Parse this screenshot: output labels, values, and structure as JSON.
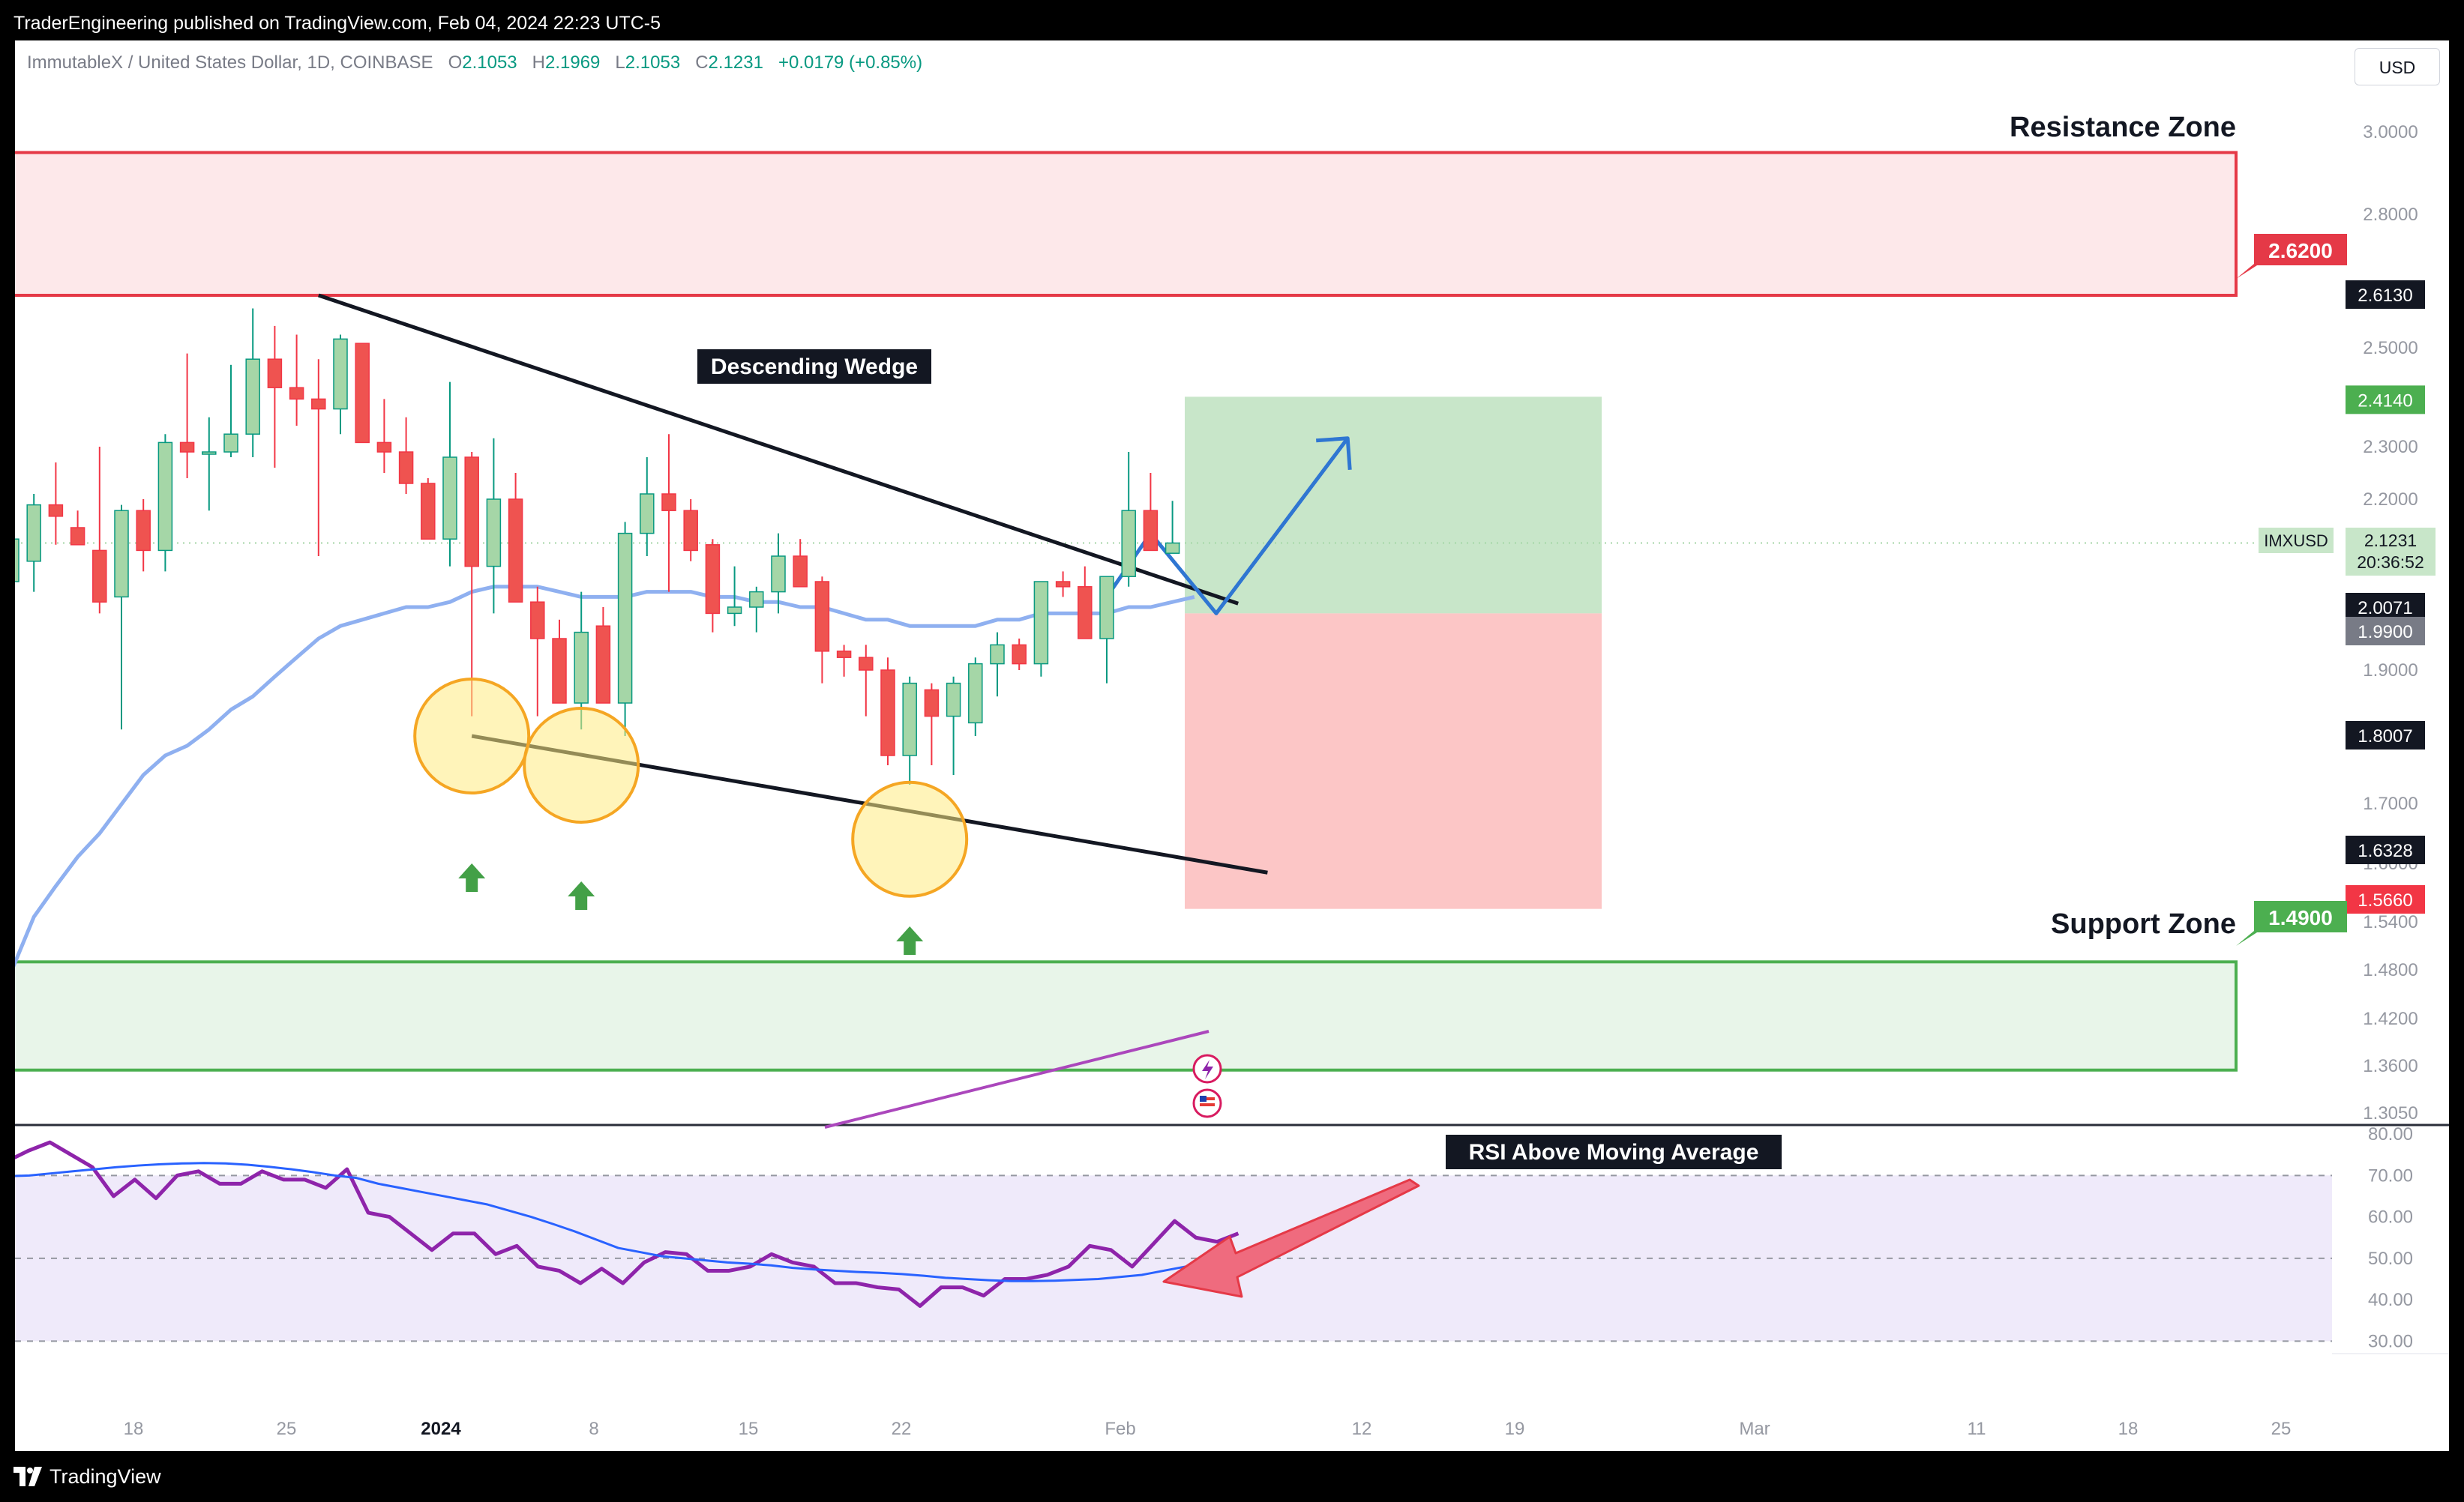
{
  "header": {
    "publish_line": "TraderEngineering published on TradingView.com, Feb 04, 2024 22:23 UTC-5"
  },
  "footer": {
    "brand": "TradingView"
  },
  "symbol_info": {
    "name": "ImmutableX / United States Dollar, 1D, COINBASE",
    "o_label": "O",
    "o": "2.1053",
    "h_label": "H",
    "h": "2.1969",
    "l_label": "L",
    "l": "2.1053",
    "c_label": "C",
    "c": "2.1231",
    "change": "+0.0179 (+0.85%)"
  },
  "currency": "USD",
  "colors": {
    "up": "#089981",
    "down": "#f23645",
    "up_fill": "#a5d6a7",
    "down_fill": "#ef5350",
    "resistance": "#e53947",
    "support": "#4caf50",
    "sma": "#8fb0f0",
    "rsi": "#8e24aa",
    "rsi_ma": "#2962ff"
  },
  "annotations": {
    "resistance_zone": "Resistance Zone",
    "support_zone": "Support Zone",
    "descending_wedge": "Descending Wedge",
    "rsi_note": "RSI Above Moving Average"
  },
  "price_labels": {
    "resistance": "2.6200",
    "support": "1.4900",
    "p2613": "2.6130",
    "tp": "2.4140",
    "symbol": "IMXUSD",
    "last": "2.1231",
    "countdown": "20:36:52",
    "p2007": "2.0071",
    "entry": "1.9900",
    "p1800": "1.8007",
    "p1632": "1.6328",
    "sl": "1.5660"
  },
  "chart_data": [
    {
      "type": "candlestick",
      "title": "ImmutableX / United States Dollar, 1D, COINBASE",
      "ylim": [
        1.29,
        3.05
      ],
      "y_ticks": [
        "3.0000",
        "2.8000",
        "2.6200",
        "2.5000",
        "2.4000",
        "2.3000",
        "2.2000",
        "2.1000",
        "2.0000",
        "1.9000",
        "1.8000",
        "1.7000",
        "1.6000",
        "1.5400",
        "1.4800",
        "1.4200",
        "1.3600",
        "1.3050"
      ],
      "x_ticks": [
        "18",
        "25",
        "2024",
        "8",
        "15",
        "22",
        "Feb",
        "12",
        "19",
        "Mar",
        "11",
        "18",
        "25"
      ],
      "candles": [
        {
          "d": "Dec 13",
          "o": 2.05,
          "h": 2.14,
          "l": 1.99,
          "c": 2.13
        },
        {
          "d": "Dec 14",
          "o": 2.09,
          "h": 2.21,
          "l": 2.03,
          "c": 2.19
        },
        {
          "d": "Dec 15",
          "o": 2.19,
          "h": 2.27,
          "l": 2.12,
          "c": 2.17
        },
        {
          "d": "Dec 16",
          "o": 2.15,
          "h": 2.18,
          "l": 2.12,
          "c": 2.12
        },
        {
          "d": "Dec 17",
          "o": 2.11,
          "h": 2.3,
          "l": 1.99,
          "c": 2.01
        },
        {
          "d": "Dec 18",
          "o": 2.02,
          "h": 2.19,
          "l": 1.81,
          "c": 2.18
        },
        {
          "d": "Dec 19",
          "o": 2.18,
          "h": 2.2,
          "l": 2.07,
          "c": 2.11
        },
        {
          "d": "Dec 20",
          "o": 2.11,
          "h": 2.33,
          "l": 2.07,
          "c": 2.31
        },
        {
          "d": "Dec 21",
          "o": 2.31,
          "h": 2.49,
          "l": 2.24,
          "c": 2.29
        },
        {
          "d": "Dec 22",
          "o": 2.29,
          "h": 2.37,
          "l": 2.18,
          "c": 2.29
        },
        {
          "d": "Dec 23",
          "o": 2.29,
          "h": 2.47,
          "l": 2.28,
          "c": 2.33
        },
        {
          "d": "Dec 24",
          "o": 2.33,
          "h": 2.59,
          "l": 2.28,
          "c": 2.48
        },
        {
          "d": "Dec 25",
          "o": 2.48,
          "h": 2.55,
          "l": 2.26,
          "c": 2.43
        },
        {
          "d": "Dec 26",
          "o": 2.43,
          "h": 2.53,
          "l": 2.35,
          "c": 2.41
        },
        {
          "d": "Dec 27",
          "o": 2.41,
          "h": 2.48,
          "l": 2.1,
          "c": 2.39
        },
        {
          "d": "Dec 28",
          "o": 2.39,
          "h": 2.53,
          "l": 2.33,
          "c": 2.52
        },
        {
          "d": "Dec 29",
          "o": 2.51,
          "h": 2.51,
          "l": 2.31,
          "c": 2.31
        },
        {
          "d": "Dec 30",
          "o": 2.31,
          "h": 2.41,
          "l": 2.25,
          "c": 2.29
        },
        {
          "d": "Dec 31",
          "o": 2.29,
          "h": 2.37,
          "l": 2.21,
          "c": 2.23
        },
        {
          "d": "Jan 01",
          "o": 2.23,
          "h": 2.24,
          "l": 2.13,
          "c": 2.13
        },
        {
          "d": "Jan 02",
          "o": 2.13,
          "h": 2.44,
          "l": 2.08,
          "c": 2.28
        },
        {
          "d": "Jan 03",
          "o": 2.28,
          "h": 2.29,
          "l": 1.83,
          "c": 2.08
        },
        {
          "d": "Jan 04",
          "o": 2.08,
          "h": 2.32,
          "l": 1.99,
          "c": 2.2
        },
        {
          "d": "Jan 05",
          "o": 2.2,
          "h": 2.25,
          "l": 2.01,
          "c": 2.01
        },
        {
          "d": "Jan 06",
          "o": 2.01,
          "h": 2.04,
          "l": 1.83,
          "c": 1.95
        },
        {
          "d": "Jan 07",
          "o": 1.95,
          "h": 1.98,
          "l": 1.85,
          "c": 1.85
        },
        {
          "d": "Jan 08",
          "o": 1.85,
          "h": 2.03,
          "l": 1.81,
          "c": 1.96
        },
        {
          "d": "Jan 09",
          "o": 1.97,
          "h": 2.0,
          "l": 1.86,
          "c": 1.85
        },
        {
          "d": "Jan 10",
          "o": 1.85,
          "h": 2.16,
          "l": 1.8,
          "c": 2.14
        },
        {
          "d": "Jan 11",
          "o": 2.14,
          "h": 2.28,
          "l": 2.1,
          "c": 2.21
        },
        {
          "d": "Jan 12",
          "o": 2.21,
          "h": 2.33,
          "l": 2.03,
          "c": 2.18
        },
        {
          "d": "Jan 13",
          "o": 2.18,
          "h": 2.2,
          "l": 2.09,
          "c": 2.11
        },
        {
          "d": "Jan 14",
          "o": 2.12,
          "h": 2.13,
          "l": 1.96,
          "c": 1.99
        },
        {
          "d": "Jan 15",
          "o": 1.99,
          "h": 2.08,
          "l": 1.97,
          "c": 2.0
        },
        {
          "d": "Jan 16",
          "o": 2.0,
          "h": 2.04,
          "l": 1.96,
          "c": 2.03
        },
        {
          "d": "Jan 17",
          "o": 2.03,
          "h": 2.14,
          "l": 1.99,
          "c": 2.1
        },
        {
          "d": "Jan 18",
          "o": 2.1,
          "h": 2.13,
          "l": 2.04,
          "c": 2.04
        },
        {
          "d": "Jan 19",
          "o": 2.05,
          "h": 2.06,
          "l": 1.88,
          "c": 1.93
        },
        {
          "d": "Jan 20",
          "o": 1.93,
          "h": 1.94,
          "l": 1.89,
          "c": 1.92
        },
        {
          "d": "Jan 21",
          "o": 1.92,
          "h": 1.94,
          "l": 1.83,
          "c": 1.9
        },
        {
          "d": "Jan 22",
          "o": 1.9,
          "h": 1.92,
          "l": 1.77,
          "c": 1.78
        },
        {
          "d": "Jan 23",
          "o": 1.78,
          "h": 1.89,
          "l": 1.75,
          "c": 1.88
        },
        {
          "d": "Jan 24",
          "o": 1.87,
          "h": 1.88,
          "l": 1.77,
          "c": 1.83
        },
        {
          "d": "Jan 25",
          "o": 1.83,
          "h": 1.89,
          "l": 1.76,
          "c": 1.88
        },
        {
          "d": "Jan 26",
          "o": 1.82,
          "h": 1.92,
          "l": 1.8,
          "c": 1.91
        },
        {
          "d": "Jan 27",
          "o": 1.91,
          "h": 1.96,
          "l": 1.86,
          "c": 1.94
        },
        {
          "d": "Jan 28",
          "o": 1.94,
          "h": 1.95,
          "l": 1.9,
          "c": 1.91
        },
        {
          "d": "Jan 29",
          "o": 1.91,
          "h": 2.05,
          "l": 1.89,
          "c": 2.05
        },
        {
          "d": "Jan 30",
          "o": 2.05,
          "h": 2.07,
          "l": 2.02,
          "c": 2.04
        },
        {
          "d": "Jan 31",
          "o": 2.04,
          "h": 2.08,
          "l": 1.95,
          "c": 1.95
        },
        {
          "d": "Feb 01",
          "o": 1.95,
          "h": 2.06,
          "l": 1.88,
          "c": 2.06
        },
        {
          "d": "Feb 02",
          "o": 2.06,
          "h": 2.29,
          "l": 2.04,
          "c": 2.18
        },
        {
          "d": "Feb 03",
          "o": 2.18,
          "h": 2.25,
          "l": 2.12,
          "c": 2.11
        },
        {
          "d": "Feb 04",
          "o": 2.105,
          "h": 2.197,
          "l": 2.105,
          "c": 2.123
        }
      ],
      "sma": [
        1.48,
        1.55,
        1.61,
        1.66,
        1.7,
        1.73,
        1.76,
        1.78,
        1.79,
        1.81,
        1.84,
        1.86,
        1.89,
        1.92,
        1.95,
        1.97,
        1.98,
        1.99,
        2.0,
        2.0,
        2.01,
        2.03,
        2.04,
        2.04,
        2.04,
        2.03,
        2.02,
        2.02,
        2.02,
        2.03,
        2.03,
        2.03,
        2.02,
        2.02,
        2.01,
        2.01,
        2.0,
        2.0,
        1.99,
        1.98,
        1.98,
        1.97,
        1.97,
        1.97,
        1.97,
        1.98,
        1.98,
        1.99,
        1.99,
        1.99,
        1.99,
        2.0,
        2.0,
        2.01,
        2.02
      ],
      "zones": {
        "resistance": {
          "top": 2.95,
          "bottom": 2.62
        },
        "support": {
          "top": 1.49,
          "bottom": 1.355
        }
      },
      "position": {
        "entry": 1.99,
        "take_profit": 2.414,
        "stop_loss": 1.566
      },
      "wedge": {
        "upper": {
          "from": [
            "Dec 27",
            2.62
          ],
          "to": [
            "Feb 07",
            2.007
          ]
        },
        "lower": {
          "from": [
            "Jan 03",
            1.8
          ],
          "to": [
            "Feb 08",
            1.633
          ]
        }
      },
      "projected_path": [
        [
          "Feb 01",
          2.02
        ],
        [
          "Feb 03",
          2.14
        ],
        [
          "Feb 06",
          1.99
        ],
        [
          "Feb 12",
          2.32
        ]
      ],
      "touch_points": [
        "Jan 03",
        "Jan 08",
        "Jan 23"
      ]
    },
    {
      "type": "line",
      "title": "RSI",
      "ylim": [
        27,
        82
      ],
      "y_ticks": [
        "80.00",
        "70.00",
        "60.00",
        "50.00",
        "40.00",
        "30.00"
      ],
      "levels": {
        "upper": 70,
        "middle": 50,
        "lower": 30
      },
      "series": [
        {
          "values": [
            73.5,
            76,
            78,
            75,
            72,
            65,
            69,
            64.5,
            70,
            71,
            68,
            68,
            71,
            69,
            69,
            67,
            71.5,
            61,
            60,
            56,
            52,
            56,
            56,
            51,
            53,
            48,
            47,
            44,
            47.5,
            44,
            49,
            51.5,
            51,
            47,
            47,
            48,
            51,
            49,
            48,
            44,
            44,
            43,
            42.5,
            38.5,
            43,
            43,
            41,
            45,
            45,
            46,
            48,
            53,
            52,
            48,
            53.5,
            59,
            55,
            54,
            56
          ]
        },
        {
          "values": [
            69.8,
            70,
            70.5,
            71,
            71.5,
            72,
            72.4,
            72.7,
            72.9,
            73,
            72.9,
            72.6,
            72.1,
            71.5,
            70.8,
            70,
            69.4,
            68,
            67,
            66,
            65,
            64,
            63,
            61.5,
            60,
            58.3,
            56.5,
            54.5,
            52.5,
            51.5,
            50.5,
            50,
            49.5,
            49,
            48.7,
            48.3,
            47.7,
            47.3,
            47,
            46.7,
            46.5,
            46.2,
            45.8,
            45.3,
            45,
            44.7,
            44.5,
            44.5,
            44.6,
            44.8,
            45,
            45.5,
            46,
            47,
            48,
            49
          ]
        }
      ]
    }
  ]
}
